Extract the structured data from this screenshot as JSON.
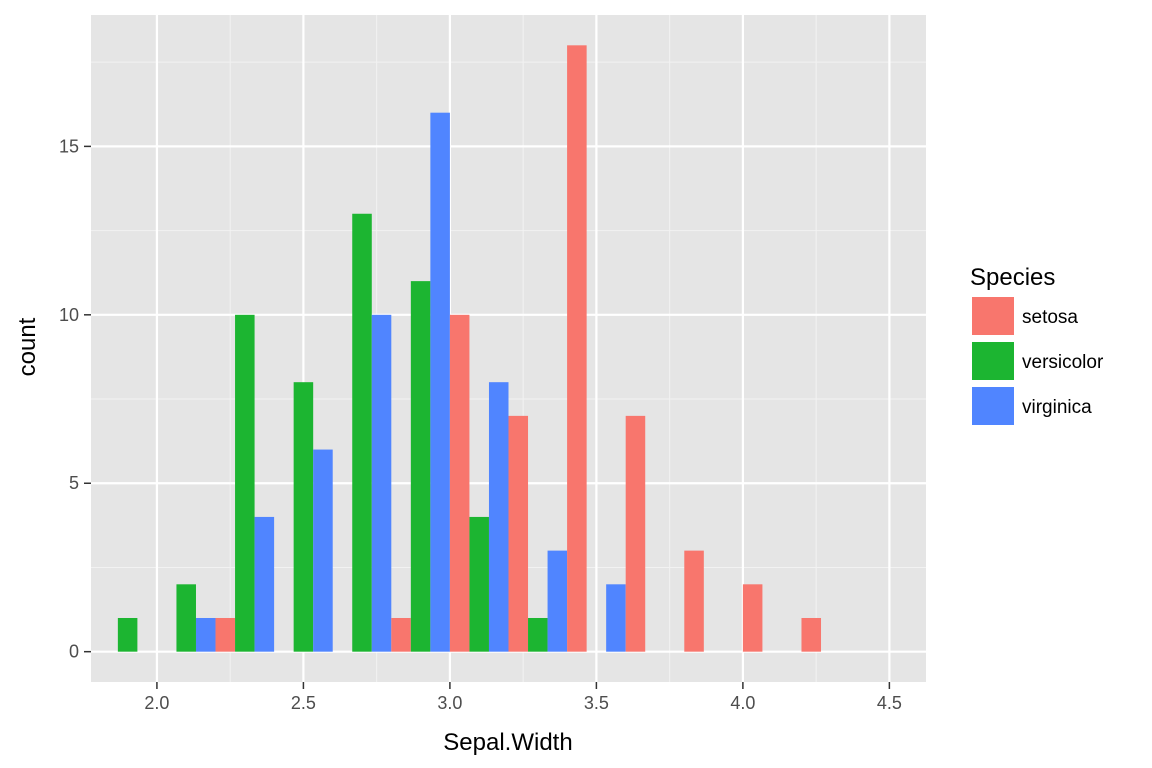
{
  "chart_data": {
    "type": "bar",
    "xlabel": "Sepal.Width",
    "ylabel": "count",
    "xlim": [
      1.775,
      4.625
    ],
    "ylim": [
      -0.9,
      18.9
    ],
    "x_ticks": [
      2.0,
      2.5,
      3.0,
      3.5,
      4.0,
      4.5
    ],
    "x_tick_labels": [
      "2.0",
      "2.5",
      "3.0",
      "3.5",
      "4.0",
      "4.5"
    ],
    "y_ticks": [
      0,
      5,
      10,
      15
    ],
    "y_tick_labels": [
      "0",
      "5",
      "10",
      "15"
    ],
    "grid": true,
    "background": "#e5e5e5",
    "legend": {
      "title": "Species",
      "placement": "right",
      "entries": [
        "setosa",
        "versicolor",
        "virginica"
      ]
    },
    "bin_centers": [
      1.9,
      2.1,
      2.3,
      2.5,
      2.7,
      2.9,
      3.1,
      3.3,
      3.5,
      3.7,
      3.9,
      4.1,
      4.3,
      4.5
    ],
    "bin_width": 0.2,
    "series": [
      {
        "name": "setosa",
        "color": "#f8766d",
        "values": [
          0,
          0,
          1,
          0,
          0,
          1,
          10,
          7,
          18,
          7,
          3,
          2,
          1,
          0
        ]
      },
      {
        "name": "versicolor",
        "color": "#1cb531",
        "values": [
          1,
          2,
          10,
          8,
          13,
          11,
          4,
          1,
          0,
          0,
          0,
          0,
          0,
          0
        ]
      },
      {
        "name": "virginica",
        "color": "#5085ff",
        "values": [
          0,
          1,
          4,
          6,
          10,
          16,
          8,
          3,
          2,
          0,
          0,
          0,
          0,
          0
        ]
      }
    ]
  }
}
